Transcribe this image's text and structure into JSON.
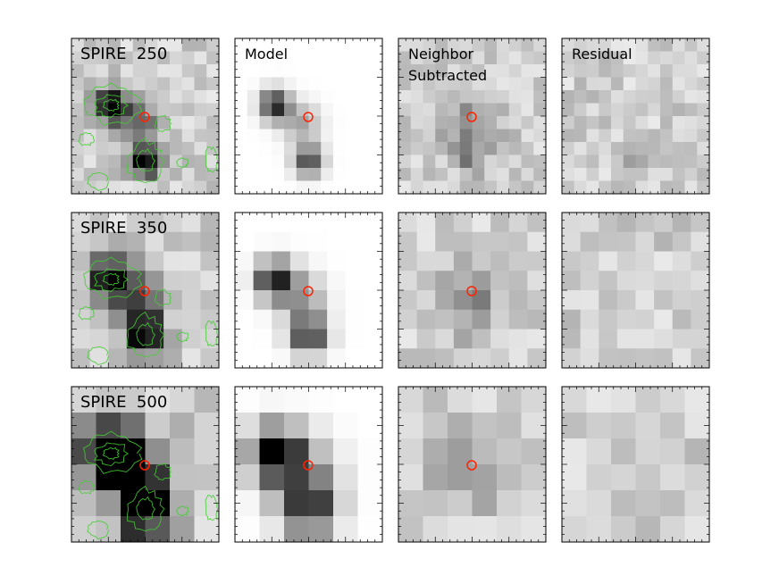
{
  "figure": {
    "rows": [
      {
        "band": "250",
        "panels": [
          {
            "label_lines": [
              "SPIRE  250"
            ],
            "has_contours": true,
            "has_circle": true
          },
          {
            "label_lines": [
              "Model"
            ],
            "has_contours": false,
            "has_circle": true
          },
          {
            "label_lines": [
              "Neighbor",
              "Subtracted"
            ],
            "has_contours": false,
            "has_circle": true
          },
          {
            "label_lines": [
              "Residual"
            ],
            "has_contours": false,
            "has_circle": false
          }
        ]
      },
      {
        "band": "350",
        "panels": [
          {
            "label_lines": [
              "SPIRE  350"
            ],
            "has_contours": true,
            "has_circle": true
          },
          {
            "label_lines": [
              ""
            ],
            "has_contours": false,
            "has_circle": true
          },
          {
            "label_lines": [
              ""
            ],
            "has_contours": false,
            "has_circle": true
          },
          {
            "label_lines": [
              ""
            ],
            "has_contours": false,
            "has_circle": false
          }
        ]
      },
      {
        "band": "500",
        "panels": [
          {
            "label_lines": [
              "SPIRE  500"
            ],
            "has_contours": true,
            "has_circle": true
          },
          {
            "label_lines": [
              ""
            ],
            "has_contours": false,
            "has_circle": true
          },
          {
            "label_lines": [
              ""
            ],
            "has_contours": false,
            "has_circle": true
          },
          {
            "label_lines": [
              ""
            ],
            "has_contours": false,
            "has_circle": false
          }
        ]
      }
    ],
    "colors": {
      "circle": "#ff2200",
      "contour": "#44cc33",
      "frame": "#000000",
      "colormap": "grayscale-inverted"
    }
  }
}
